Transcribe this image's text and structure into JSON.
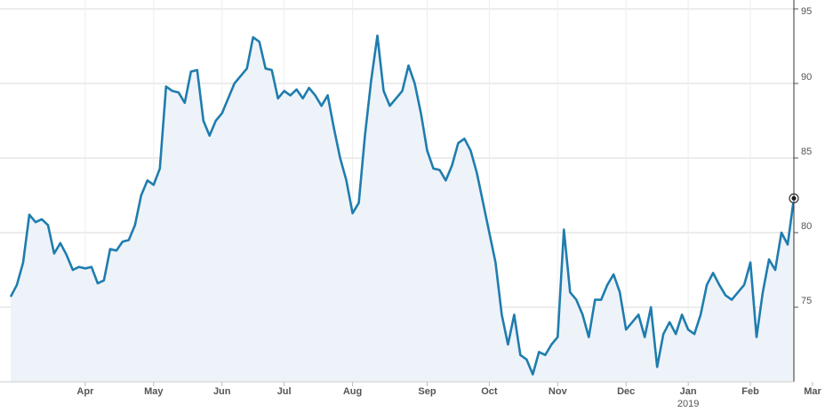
{
  "chart_data": {
    "type": "line",
    "categories": [
      null,
      null,
      null,
      null,
      null,
      null,
      null,
      null,
      null,
      null,
      null,
      null,
      "Apr",
      null,
      null,
      null,
      null,
      null,
      null,
      null,
      null,
      null,
      null,
      "May",
      null,
      null,
      null,
      null,
      null,
      null,
      null,
      null,
      null,
      null,
      "Jun",
      null,
      null,
      null,
      null,
      null,
      null,
      null,
      null,
      null,
      "Jul",
      null,
      null,
      null,
      null,
      null,
      null,
      null,
      null,
      null,
      null,
      "Aug",
      null,
      null,
      null,
      null,
      null,
      null,
      null,
      null,
      null,
      null,
      null,
      "Sep",
      null,
      null,
      null,
      null,
      null,
      null,
      null,
      null,
      null,
      "Oct",
      null,
      null,
      null,
      null,
      null,
      null,
      null,
      null,
      null,
      null,
      "Nov",
      null,
      null,
      null,
      null,
      null,
      null,
      null,
      null,
      null,
      null,
      "Dec",
      null,
      null,
      null,
      null,
      null,
      null,
      null,
      null,
      null,
      "Jan",
      null,
      null,
      null,
      null,
      null,
      null,
      null,
      null,
      null,
      "Feb",
      null,
      null,
      null,
      null,
      null,
      null,
      null,
      null,
      null,
      "Mar"
    ],
    "x_sublabel": {
      "under": "Jan",
      "label": "2019"
    },
    "series": [
      {
        "color": "#1f7dae",
        "fill": "#eef3f9",
        "values": [
          75.7,
          76.5,
          78,
          81.2,
          80.7,
          80.9,
          80.5,
          78.6,
          79.3,
          78.5,
          77.5,
          77.7,
          77.6,
          77.7,
          76.6,
          76.8,
          78.9,
          78.8,
          79.4,
          79.5,
          80.5,
          82.5,
          83.5,
          83.2,
          84.3,
          89.8,
          89.5,
          89.4,
          88.7,
          90.8,
          90.9,
          87.5,
          86.5,
          87.5,
          88,
          89,
          90,
          90.5,
          91,
          93.1,
          92.8,
          91,
          90.9,
          89,
          89.5,
          89.2,
          89.6,
          89,
          89.7,
          89.2,
          88.5,
          89.2,
          87,
          85,
          83.5,
          81.3,
          82,
          86.5,
          90.2,
          93.2,
          89.5,
          88.5,
          89,
          89.5,
          91.2,
          90,
          88,
          85.5,
          84.3,
          84.2,
          83.5,
          84.5,
          86,
          86.3,
          85.5,
          84,
          82,
          80,
          78,
          74.5,
          72.5,
          74.5,
          71.8,
          71.5,
          70.5,
          72,
          71.8,
          72.5,
          73,
          80.2,
          76,
          75.5,
          74.5,
          73,
          75.5,
          75.5,
          76.5,
          77.2,
          76,
          73.5,
          74,
          74.5,
          73,
          75,
          71,
          73.2,
          74,
          73.2,
          74.5,
          73.5,
          73.2,
          74.5,
          76.5,
          77.3,
          76.5,
          75.8,
          75.5,
          76,
          76.5,
          78,
          73,
          76,
          78.2,
          77.5,
          80,
          79.2,
          82.3,
          null,
          null,
          null
        ]
      }
    ],
    "ylim": [
      70,
      95
    ],
    "yticks": [
      75,
      80,
      85,
      90,
      95
    ],
    "grid": true,
    "last_point_marker": true
  }
}
